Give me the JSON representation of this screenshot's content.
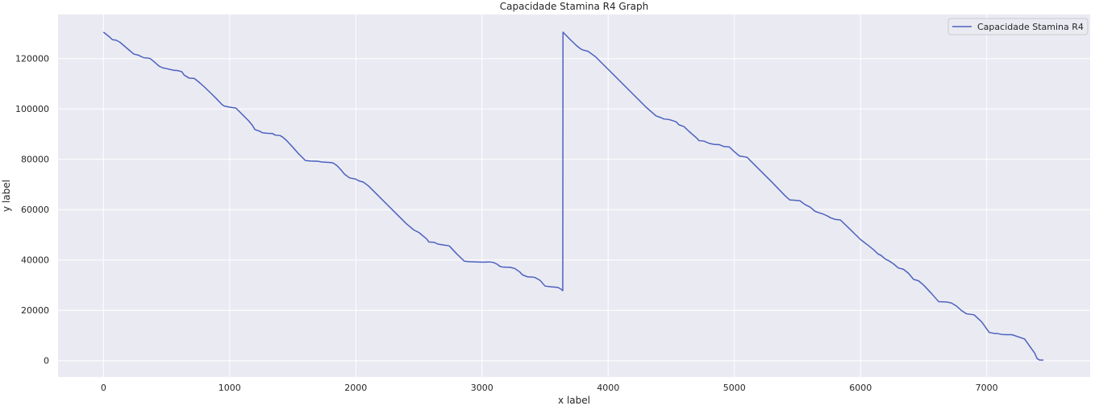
{
  "chart_data": {
    "type": "line",
    "title": "Capacidade Stamina R4 Graph",
    "xlabel": "x label",
    "ylabel": "y label",
    "xlim": [
      -360,
      7820
    ],
    "ylim": [
      -6500,
      137500
    ],
    "x_ticks": [
      0,
      1000,
      2000,
      3000,
      4000,
      5000,
      6000,
      7000
    ],
    "x_tick_labels": [
      "0",
      "1000",
      "2000",
      "3000",
      "4000",
      "5000",
      "6000",
      "7000"
    ],
    "y_ticks": [
      0,
      20000,
      40000,
      60000,
      80000,
      100000,
      120000
    ],
    "y_tick_labels": [
      "0",
      "20000",
      "40000",
      "60000",
      "80000",
      "100000",
      "120000"
    ],
    "grid": true,
    "legend": {
      "position": "top-right",
      "entries": [
        "Capacidade Stamina R4"
      ]
    },
    "colors": {
      "plot_bg": "#eaeaf2",
      "grid": "#ffffff",
      "series": "#4c62bf"
    },
    "series": [
      {
        "name": "Capacidade Stamina R4",
        "x": [
          0,
          50,
          70,
          100,
          130,
          200,
          240,
          280,
          290,
          320,
          350,
          370,
          400,
          440,
          470,
          500,
          560,
          580,
          620,
          640,
          680,
          720,
          760,
          800,
          850,
          900,
          940,
          960,
          1000,
          1050,
          1100,
          1150,
          1180,
          1200,
          1240,
          1260,
          1300,
          1340,
          1360,
          1400,
          1420,
          1450,
          1500,
          1550,
          1600,
          1640,
          1700,
          1730,
          1800,
          1820,
          1850,
          1880,
          1910,
          1950,
          2000,
          2020,
          2060,
          2100,
          2200,
          2300,
          2400,
          2460,
          2500,
          2560,
          2580,
          2620,
          2650,
          2700,
          2740,
          2800,
          2860,
          2900,
          2960,
          3000,
          3060,
          3090,
          3120,
          3140,
          3160,
          3200,
          3220,
          3260,
          3300,
          3320,
          3360,
          3400,
          3420,
          3460,
          3500,
          3550,
          3600,
          3620,
          3640,
          3642,
          3700,
          3750,
          3780,
          3800,
          3840,
          3900,
          4000,
          4100,
          4200,
          4300,
          4380,
          4420,
          4440,
          4480,
          4520,
          4540,
          4560,
          4600,
          4640,
          4700,
          4720,
          4760,
          4800,
          4840,
          4880,
          4920,
          4960,
          5000,
          5040,
          5100,
          5200,
          5300,
          5400,
          5440,
          5480,
          5520,
          5560,
          5600,
          5640,
          5680,
          5700,
          5740,
          5760,
          5800,
          5840,
          5900,
          6000,
          6060,
          6100,
          6140,
          6160,
          6200,
          6220,
          6260,
          6300,
          6340,
          6380,
          6420,
          6460,
          6500,
          6560,
          6620,
          6680,
          6720,
          6760,
          6800,
          6840,
          6900,
          6960,
          7000,
          7020,
          7060,
          7080,
          7120,
          7160,
          7200,
          7300,
          7380,
          7400,
          7420,
          7450
        ],
        "y": [
          130500,
          128500,
          127500,
          127300,
          126500,
          123500,
          121800,
          121300,
          121000,
          120300,
          120200,
          120000,
          118800,
          117000,
          116300,
          116000,
          115300,
          115300,
          114800,
          113400,
          112200,
          112100,
          110500,
          108700,
          106300,
          103800,
          101700,
          101100,
          100700,
          100300,
          97800,
          95300,
          93500,
          91800,
          91100,
          90500,
          90300,
          90200,
          89600,
          89400,
          88800,
          87500,
          84800,
          82000,
          79500,
          79300,
          79200,
          78900,
          78700,
          78500,
          77500,
          75900,
          74100,
          72600,
          72100,
          71500,
          70900,
          69400,
          64400,
          59400,
          54400,
          51900,
          50900,
          48400,
          47100,
          47000,
          46300,
          45900,
          45600,
          42400,
          39500,
          39300,
          39200,
          39100,
          39200,
          39000,
          38300,
          37500,
          37200,
          37100,
          37100,
          36600,
          35200,
          34100,
          33300,
          33200,
          33000,
          31900,
          29600,
          29300,
          29100,
          28600,
          27800,
          130500,
          127500,
          125100,
          123900,
          123400,
          122900,
          120700,
          115700,
          110700,
          105700,
          100700,
          97200,
          96500,
          96000,
          95800,
          95200,
          94800,
          93700,
          93000,
          91100,
          88500,
          87400,
          87200,
          86300,
          85900,
          85800,
          85000,
          84900,
          83000,
          81300,
          80800,
          75800,
          70800,
          65600,
          63800,
          63700,
          63500,
          62000,
          61000,
          59300,
          58600,
          58300,
          57400,
          56800,
          56100,
          55900,
          53000,
          48100,
          45800,
          44200,
          42300,
          41900,
          40200,
          39800,
          38500,
          36800,
          36300,
          34700,
          32300,
          31700,
          30000,
          26800,
          23400,
          23300,
          22900,
          21700,
          19900,
          18600,
          18200,
          15400,
          12600,
          11200,
          10800,
          10800,
          10400,
          10300,
          10300,
          8600,
          3000,
          800,
          200,
          200
        ]
      }
    ]
  }
}
